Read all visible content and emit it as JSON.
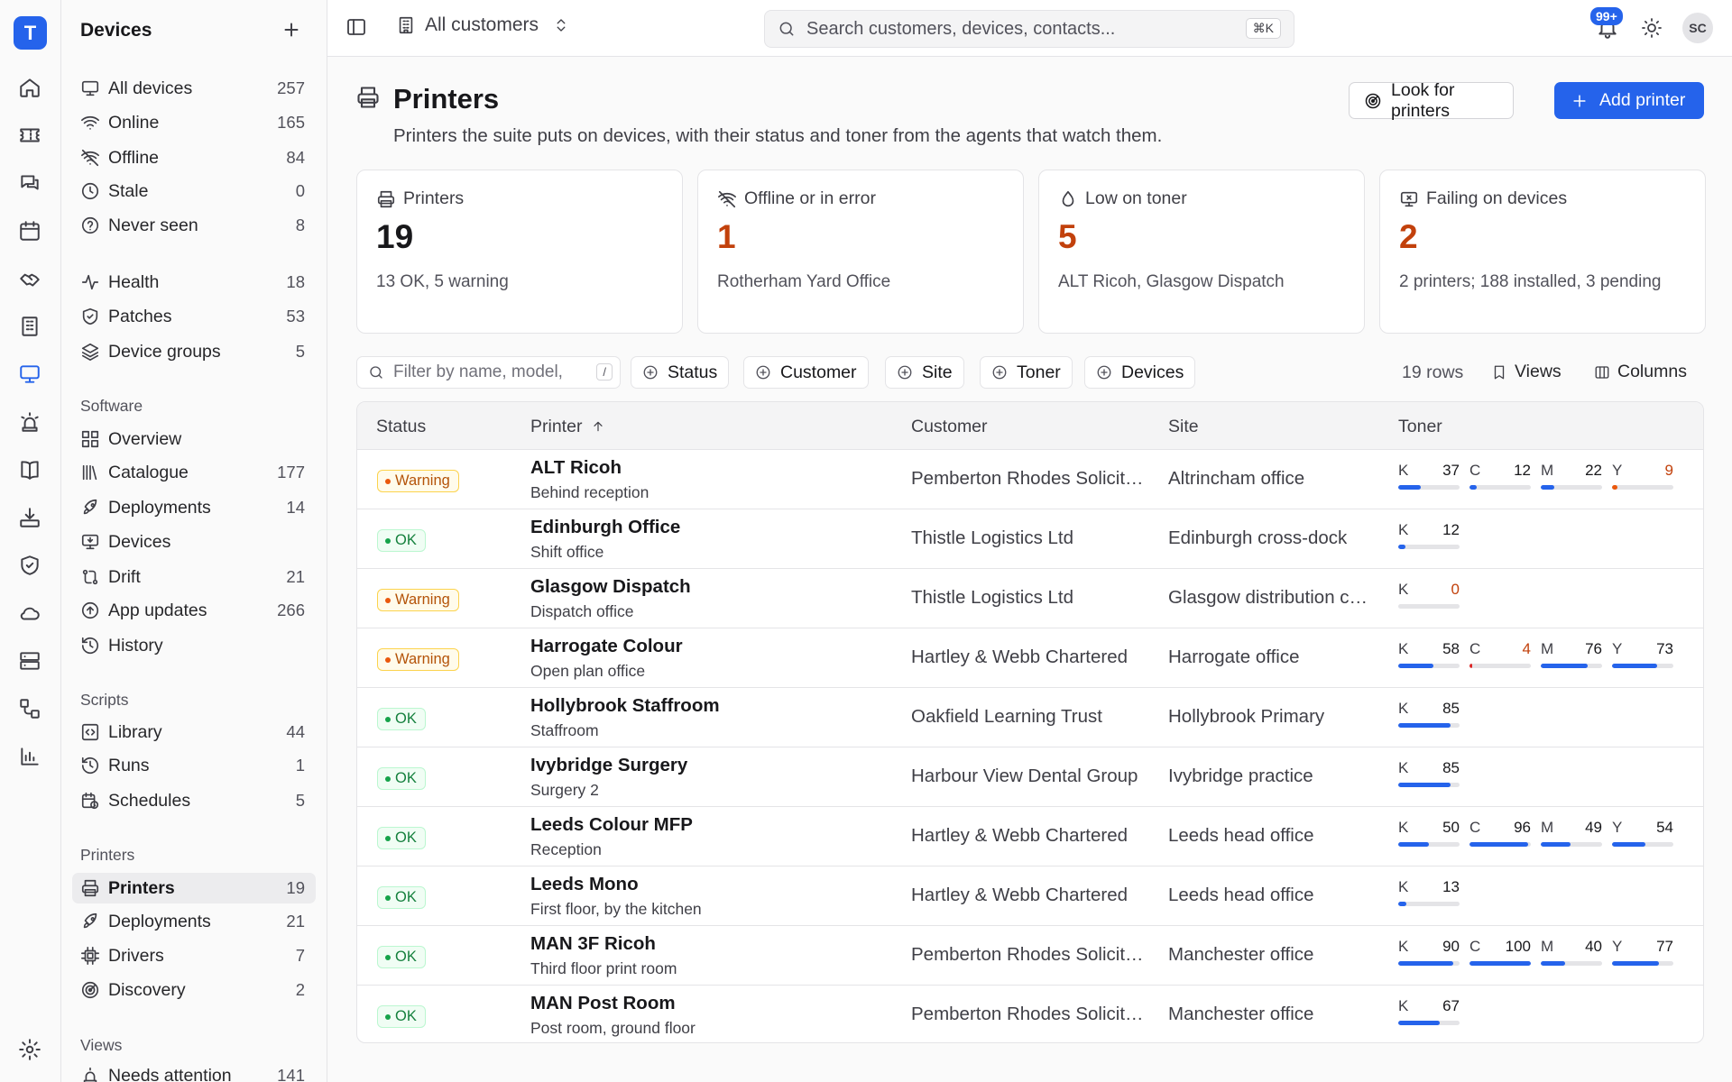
{
  "app": {
    "logo": "T"
  },
  "rail": [
    "home-icon",
    "ticket-icon",
    "chat-icon",
    "calendar-icon",
    "handshake-icon",
    "building-icon",
    "monitor-icon",
    "alarm-icon",
    "book-icon",
    "download-icon",
    "shield-icon",
    "cloud-icon",
    "server-icon",
    "workflow-icon",
    "bar-chart-icon",
    "settings-icon"
  ],
  "sidebar": {
    "title": "Devices",
    "devices": [
      {
        "label": "All devices",
        "count": "257",
        "icon": "monitor"
      },
      {
        "label": "Online",
        "count": "165",
        "icon": "wifi"
      },
      {
        "label": "Offline",
        "count": "84",
        "icon": "wifi-off"
      },
      {
        "label": "Stale",
        "count": "0",
        "icon": "clock"
      },
      {
        "label": "Never seen",
        "count": "8",
        "icon": "help"
      }
    ],
    "health": [
      {
        "label": "Health",
        "count": "18",
        "icon": "activity"
      },
      {
        "label": "Patches",
        "count": "53",
        "icon": "shield-check"
      },
      {
        "label": "Device groups",
        "count": "5",
        "icon": "layers"
      }
    ],
    "software_title": "Software",
    "software": [
      {
        "label": "Overview",
        "count": "",
        "icon": "grid"
      },
      {
        "label": "Catalogue",
        "count": "177",
        "icon": "library"
      },
      {
        "label": "Deployments",
        "count": "14",
        "icon": "rocket"
      },
      {
        "label": "Devices",
        "count": "",
        "icon": "monitor-down"
      },
      {
        "label": "Drift",
        "count": "21",
        "icon": "git-compare"
      },
      {
        "label": "App updates",
        "count": "266",
        "icon": "arrow-up-circle"
      },
      {
        "label": "History",
        "count": "",
        "icon": "history"
      }
    ],
    "scripts_title": "Scripts",
    "scripts": [
      {
        "label": "Library",
        "count": "44",
        "icon": "square-code"
      },
      {
        "label": "Runs",
        "count": "1",
        "icon": "history"
      },
      {
        "label": "Schedules",
        "count": "5",
        "icon": "calendar-clock"
      }
    ],
    "printers_title": "Printers",
    "printers": [
      {
        "label": "Printers",
        "count": "19",
        "icon": "printer",
        "active": true
      },
      {
        "label": "Deployments",
        "count": "21",
        "icon": "rocket"
      },
      {
        "label": "Drivers",
        "count": "7",
        "icon": "cpu"
      },
      {
        "label": "Discovery",
        "count": "2",
        "icon": "radar"
      }
    ],
    "views_title": "Views",
    "views": [
      {
        "label": "Needs attention",
        "count": "141",
        "icon": "alarm"
      }
    ]
  },
  "topbar": {
    "customer_scope": "All customers",
    "search_placeholder": "Search customers, devices, contacts...",
    "search_shortcut": "⌘K",
    "notifications": "99+",
    "avatar": "SC"
  },
  "page": {
    "title": "Printers",
    "subtitle": "Printers the suite puts on devices, with their status and toner from the agents that watch them.",
    "look_button": "Look for printers",
    "add_button": "Add printer"
  },
  "cards": [
    {
      "label": "Printers",
      "value": "19",
      "sub": "13 OK, 5 warning",
      "icon": "printer",
      "alert": false
    },
    {
      "label": "Offline or in error",
      "value": "1",
      "sub": "Rotherham Yard Office",
      "icon": "wifi-off",
      "alert": true
    },
    {
      "label": "Low on toner",
      "value": "5",
      "sub": "ALT Ricoh, Glasgow Dispatch",
      "icon": "droplet",
      "alert": true
    },
    {
      "label": "Failing on devices",
      "value": "2",
      "sub": "2 printers; 188 installed, 3 pending",
      "icon": "monitor-x",
      "alert": true
    }
  ],
  "filters": {
    "placeholder": "Filter by name, model,",
    "shortcut": "/",
    "chips": [
      "Status",
      "Customer",
      "Site",
      "Toner",
      "Devices"
    ],
    "rows": "19 rows",
    "views": "Views",
    "columns": "Columns"
  },
  "table": {
    "headers": {
      "status": "Status",
      "printer": "Printer",
      "customer": "Customer",
      "site": "Site",
      "toner": "Toner"
    },
    "rows": [
      {
        "status": "Warning",
        "name": "ALT Ricoh",
        "location": "Behind reception",
        "customer": "Pemberton Rhodes Solicitors",
        "site": "Altrincham office",
        "toner": [
          {
            "c": "K",
            "v": 37
          },
          {
            "c": "C",
            "v": 12
          },
          {
            "c": "M",
            "v": 22
          },
          {
            "c": "Y",
            "v": 9,
            "low": true
          }
        ]
      },
      {
        "status": "OK",
        "name": "Edinburgh Office",
        "location": "Shift office",
        "customer": "Thistle Logistics Ltd",
        "site": "Edinburgh cross-dock",
        "toner": [
          {
            "c": "K",
            "v": 12
          }
        ]
      },
      {
        "status": "Warning",
        "name": "Glasgow Dispatch",
        "location": "Dispatch office",
        "customer": "Thistle Logistics Ltd",
        "site": "Glasgow distribution centre",
        "toner": [
          {
            "c": "K",
            "v": 0,
            "low": true
          }
        ]
      },
      {
        "status": "Warning",
        "name": "Harrogate Colour",
        "location": "Open plan office",
        "customer": "Hartley & Webb Chartered",
        "site": "Harrogate office",
        "toner": [
          {
            "c": "K",
            "v": 58
          },
          {
            "c": "C",
            "v": 4,
            "low": true
          },
          {
            "c": "M",
            "v": 76
          },
          {
            "c": "Y",
            "v": 73
          }
        ]
      },
      {
        "status": "OK",
        "name": "Hollybrook Staffroom",
        "location": "Staffroom",
        "customer": "Oakfield Learning Trust",
        "site": "Hollybrook Primary",
        "toner": [
          {
            "c": "K",
            "v": 85
          }
        ]
      },
      {
        "status": "OK",
        "name": "Ivybridge Surgery",
        "location": "Surgery 2",
        "customer": "Harbour View Dental Group",
        "site": "Ivybridge practice",
        "toner": [
          {
            "c": "K",
            "v": 85
          }
        ]
      },
      {
        "status": "OK",
        "name": "Leeds Colour MFP",
        "location": "Reception",
        "customer": "Hartley & Webb Chartered",
        "site": "Leeds head office",
        "toner": [
          {
            "c": "K",
            "v": 50
          },
          {
            "c": "C",
            "v": 96
          },
          {
            "c": "M",
            "v": 49
          },
          {
            "c": "Y",
            "v": 54
          }
        ]
      },
      {
        "status": "OK",
        "name": "Leeds Mono",
        "location": "First floor, by the kitchen",
        "customer": "Hartley & Webb Chartered",
        "site": "Leeds head office",
        "toner": [
          {
            "c": "K",
            "v": 13
          }
        ]
      },
      {
        "status": "OK",
        "name": "MAN 3F Ricoh",
        "location": "Third floor print room",
        "customer": "Pemberton Rhodes Solicitors",
        "site": "Manchester office",
        "toner": [
          {
            "c": "K",
            "v": 90
          },
          {
            "c": "C",
            "v": 100
          },
          {
            "c": "M",
            "v": 40
          },
          {
            "c": "Y",
            "v": 77
          }
        ]
      },
      {
        "status": "OK",
        "name": "MAN Post Room",
        "location": "Post room, ground floor",
        "customer": "Pemberton Rhodes Solicitors",
        "site": "Manchester office",
        "toner": [
          {
            "c": "K",
            "v": 67
          }
        ]
      }
    ]
  },
  "colors": {
    "accent": "#2563eb",
    "warning": "#c2410c",
    "ok": "#15803d"
  }
}
